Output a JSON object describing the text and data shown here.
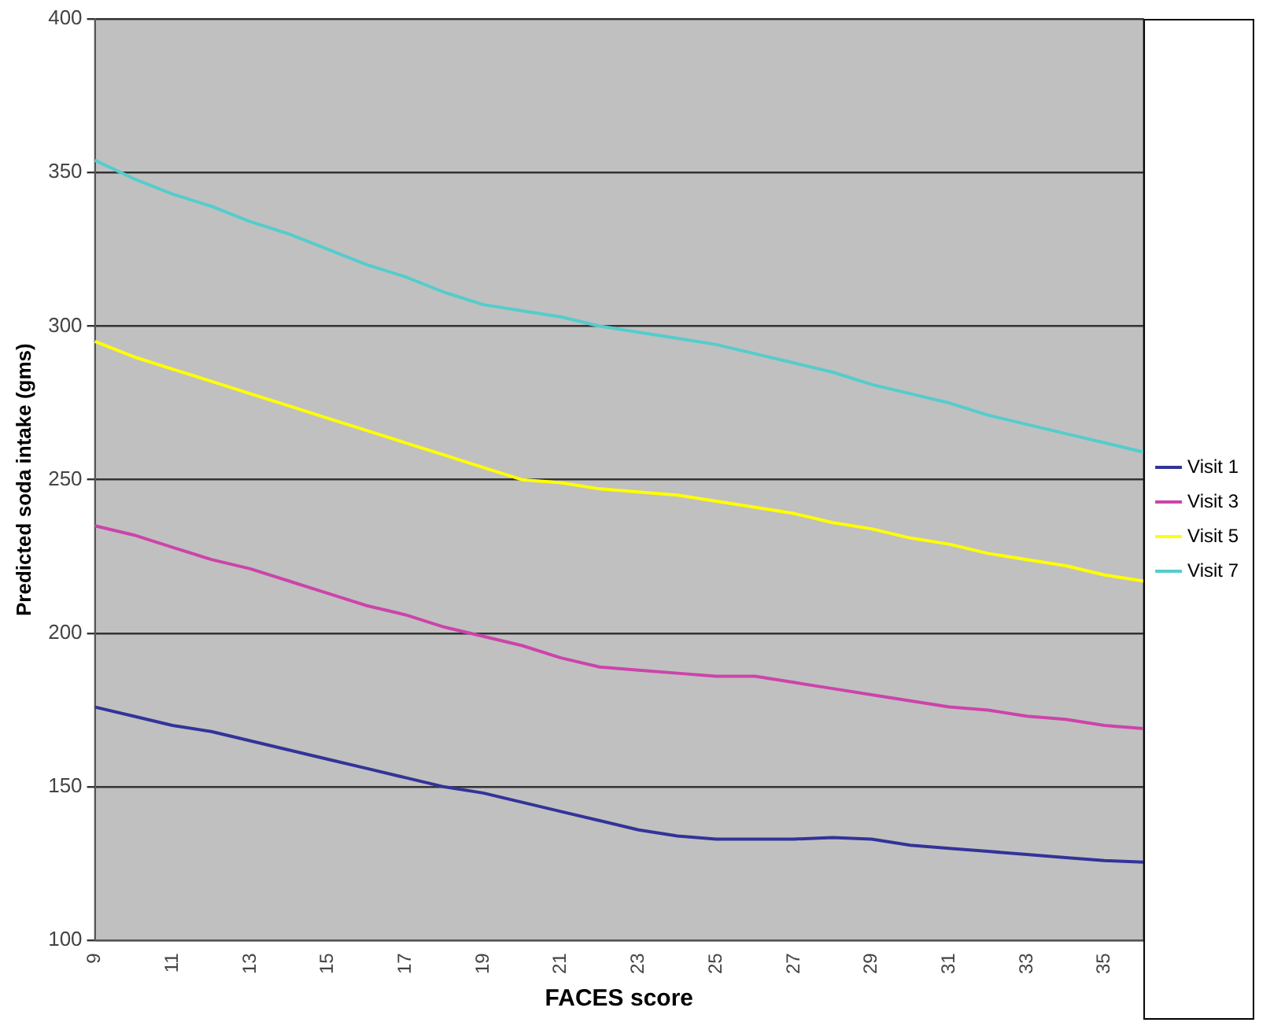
{
  "chart_data": {
    "type": "line",
    "xlabel": "FACES score",
    "ylabel": "Predicted soda intake (gms)",
    "categories": [
      "9",
      null,
      "11",
      null,
      "13",
      null,
      "15",
      null,
      "17",
      null,
      "19",
      null,
      "21",
      null,
      "23",
      null,
      "25",
      null,
      "27",
      null,
      "29",
      null,
      "31",
      null,
      "33",
      null,
      "35",
      null
    ],
    "series": [
      {
        "name": "Visit 1",
        "color": "#333399",
        "values": [
          176,
          173,
          170,
          168,
          165,
          162,
          159,
          156,
          153,
          150,
          148,
          145,
          142,
          139,
          136,
          134,
          133,
          133,
          133,
          133.5,
          133,
          131,
          130,
          129,
          128,
          127,
          126,
          125.5
        ]
      },
      {
        "name": "Visit 3",
        "color": "#cc44aa",
        "values": [
          235,
          232,
          228,
          224,
          221,
          217,
          213,
          209,
          206,
          202,
          199,
          196,
          192,
          189,
          188,
          187,
          186,
          186,
          184,
          182,
          180,
          178,
          176,
          175,
          173,
          172,
          170,
          169
        ]
      },
      {
        "name": "Visit 5",
        "color": "#ffff00",
        "values": [
          295,
          290,
          286,
          282,
          278,
          274,
          270,
          266,
          262,
          258,
          254,
          250,
          249,
          247,
          246,
          245,
          243,
          241,
          239,
          236,
          234,
          231,
          229,
          226,
          224,
          222,
          219,
          217
        ]
      },
      {
        "name": "Visit 7",
        "color": "#55cccc",
        "values": [
          354,
          348,
          343,
          339,
          334,
          330,
          325,
          320,
          316,
          311,
          307,
          305,
          303,
          300,
          298,
          296,
          294,
          291,
          288,
          285,
          281,
          278,
          275,
          271,
          268,
          265,
          262,
          259
        ]
      }
    ],
    "ylim": [
      100,
      400
    ],
    "yticks": [
      100,
      150,
      200,
      250,
      300,
      350,
      400
    ],
    "grid": "y",
    "legend": "right",
    "marker": "none",
    "line_style": "solid"
  }
}
